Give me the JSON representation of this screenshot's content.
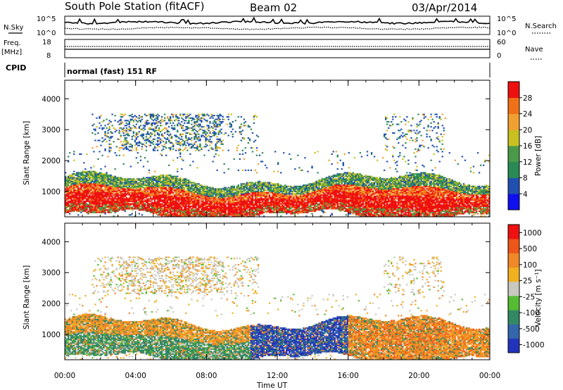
{
  "header": {
    "station": "South Pole Station (fitACF)",
    "beam": "Beam 02",
    "date": "03/Apr/2014"
  },
  "summary_panels": {
    "nsky_label": "N.Sky",
    "nsky_ticks": [
      "10^5",
      "10^0"
    ],
    "nsearch_label": "N.Search",
    "nsearch_ticks": [
      "10^5",
      "10^0"
    ],
    "freq_label": "Freq.",
    "freq_unit": "[MHz]",
    "freq_ticks": [
      "18",
      "8"
    ],
    "nave_label": "Nave",
    "nave_ticks": [
      "60",
      "0"
    ],
    "cpid_label": "CPID",
    "cpid_text": "normal (fast) 151 RF"
  },
  "chart_data": [
    {
      "type": "heatmap",
      "name": "power",
      "ylabel": "Slant Range [km]",
      "yticks": [
        "1000",
        "2000",
        "3000",
        "4000"
      ],
      "ylim": [
        180,
        4600
      ],
      "xlabel": "Time UT",
      "xticks": [
        "00:00",
        "04:00",
        "08:00",
        "12:00",
        "16:00",
        "20:00",
        "00:00"
      ],
      "xlim_hours": [
        0,
        24
      ],
      "colorbar": {
        "label": "Power [dB]",
        "ticks": [
          "4",
          "8",
          "12",
          "16",
          "20",
          "24",
          "28"
        ],
        "colors": [
          "#1010ee",
          "#2050b0",
          "#2a8a55",
          "#4a9a4a",
          "#c8c020",
          "#f0a030",
          "#f07018",
          "#ee1010"
        ]
      }
    },
    {
      "type": "heatmap",
      "name": "velocity",
      "ylabel": "Slant Range [km]",
      "yticks": [
        "1000",
        "2000",
        "3000",
        "4000"
      ],
      "ylim": [
        180,
        4600
      ],
      "xlabel": "Time UT",
      "xticks": [
        "00:00",
        "04:00",
        "08:00",
        "12:00",
        "16:00",
        "20:00",
        "00:00"
      ],
      "xlim_hours": [
        0,
        24
      ],
      "colorbar": {
        "label": "Velocity [m s⁻¹]",
        "ticks": [
          "1000",
          "500",
          "100",
          "25",
          "-25",
          "-100",
          "-500",
          "-1000"
        ],
        "colors": [
          "#2233bb",
          "#3366aa",
          "#338866",
          "#55bb33",
          "#c8c8c0",
          "#f0b020",
          "#f08828",
          "#ee5518",
          "#ee1111"
        ]
      }
    }
  ]
}
